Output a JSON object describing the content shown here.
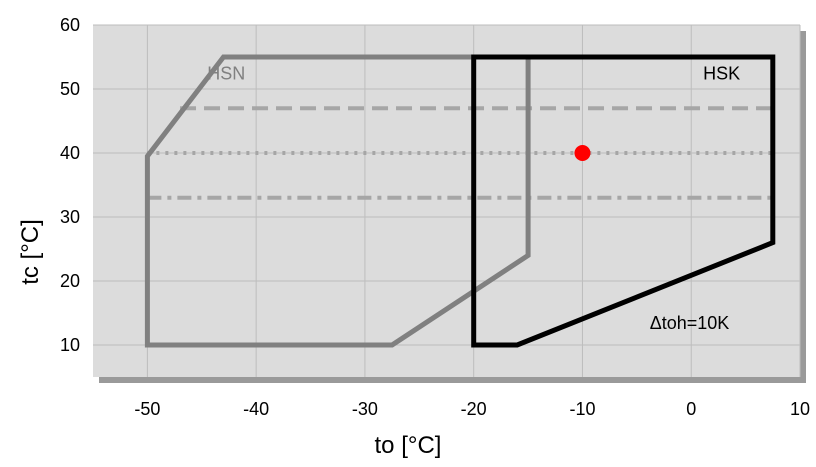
{
  "chart_data": {
    "type": "line",
    "xlabel": "to [°C]",
    "ylabel": "tc [°C]",
    "xlim": [
      -55,
      10
    ],
    "ylim": [
      5,
      60
    ],
    "x_ticks": [
      -50,
      -40,
      -30,
      -20,
      -10,
      0,
      10
    ],
    "y_ticks": [
      10,
      20,
      30,
      40,
      50,
      60
    ],
    "grid": true,
    "background_color": "#dcdcdc",
    "series": [
      {
        "name": "HSN",
        "color": "#808080",
        "closed": true,
        "points": [
          [
            -43,
            55
          ],
          [
            -15,
            55
          ],
          [
            -15,
            24
          ],
          [
            -27.5,
            10
          ],
          [
            -50,
            10
          ],
          [
            -50,
            39.5
          ]
        ]
      },
      {
        "name": "HSK",
        "color": "#000000",
        "closed": true,
        "points": [
          [
            -20,
            55
          ],
          [
            7.5,
            55
          ],
          [
            7.5,
            26
          ],
          [
            -16,
            10
          ],
          [
            -20,
            10
          ]
        ]
      }
    ],
    "reference_lines": [
      {
        "style": "dashed",
        "y": 47,
        "x": [
          -47,
          7.5
        ],
        "color": "#a6a6a6"
      },
      {
        "style": "dotted",
        "y": 40,
        "x": [
          -50,
          7.5
        ],
        "color": "#a6a6a6"
      },
      {
        "style": "dashdot",
        "y": 33,
        "x": [
          -50,
          7.5
        ],
        "color": "#a6a6a6"
      }
    ],
    "points": [
      {
        "x": -10,
        "y": 40,
        "color": "#ff0000"
      }
    ],
    "annotations": [
      {
        "text": "Δtoh=10K",
        "x": 3.5,
        "y": 12.5
      }
    ]
  }
}
